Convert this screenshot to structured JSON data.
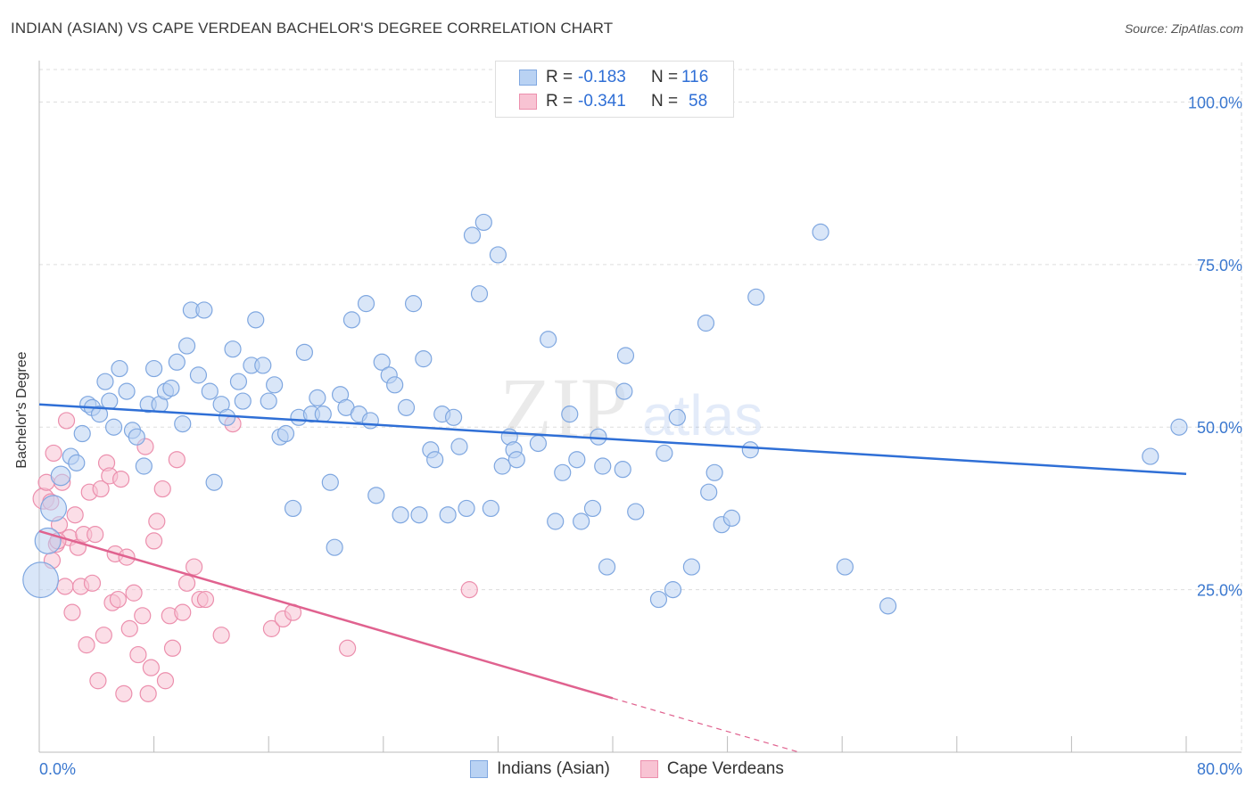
{
  "header": {
    "title": "INDIAN (ASIAN) VS CAPE VERDEAN BACHELOR'S DEGREE CORRELATION CHART",
    "source": "Source: ZipAtlas.com"
  },
  "watermark": {
    "zip": "ZIP",
    "atlas": "atlas"
  },
  "legend_top": {
    "rows": [
      {
        "r_label": "R =",
        "r_value": "-0.183",
        "n_label": "N =",
        "n_value": "116"
      },
      {
        "r_label": "R =",
        "r_value": "-0.341",
        "n_label": "N =",
        "n_value": "58"
      }
    ]
  },
  "legend_bottom": {
    "items": [
      {
        "label": "Indians (Asian)"
      },
      {
        "label": "Cape Verdeans"
      }
    ]
  },
  "colors": {
    "blue_fill": "#b9d2f3",
    "blue_stroke": "#7fa7e0",
    "blue_line": "#2f6fd6",
    "pink_fill": "#f8c3d3",
    "pink_stroke": "#ec8fad",
    "pink_line": "#e0628f",
    "axis_text": "#3b78cf",
    "grid": "#dddddd"
  },
  "chart_data": {
    "type": "scatter",
    "title": "INDIAN (ASIAN) VS CAPE VERDEAN BACHELOR'S DEGREE CORRELATION CHART",
    "xlabel": "",
    "ylabel": "Bachelor's Degree",
    "xlim": [
      0,
      80
    ],
    "ylim": [
      0,
      105
    ],
    "x_tick_labels": [
      "0.0%",
      "80.0%"
    ],
    "y_ticks": [
      25,
      50,
      75,
      100
    ],
    "y_tick_labels": [
      "25.0%",
      "50.0%",
      "75.0%",
      "100.0%"
    ],
    "series": [
      {
        "name": "Indians (Asian)",
        "r": -0.183,
        "n": 116,
        "trend": {
          "x0": 0,
          "y0": 53.5,
          "x1": 80,
          "y1": 42.8
        },
        "points": [
          [
            0.1,
            26.5,
            2.2
          ],
          [
            1.0,
            37.5,
            1.6
          ],
          [
            0.6,
            32.5,
            1.6
          ],
          [
            1.5,
            42.5,
            1.2
          ],
          [
            2.2,
            45.5,
            1
          ],
          [
            2.6,
            44.5,
            1
          ],
          [
            3.0,
            49.0,
            1
          ],
          [
            3.4,
            53.5,
            1
          ],
          [
            3.7,
            53.0,
            1
          ],
          [
            4.2,
            52.0,
            1
          ],
          [
            4.6,
            57.0,
            1
          ],
          [
            4.9,
            54.0,
            1
          ],
          [
            5.2,
            50.0,
            1
          ],
          [
            5.6,
            59.0,
            1
          ],
          [
            6.1,
            55.5,
            1
          ],
          [
            6.5,
            49.5,
            1
          ],
          [
            6.8,
            48.5,
            1
          ],
          [
            7.3,
            44.0,
            1
          ],
          [
            7.6,
            53.5,
            1
          ],
          [
            8.0,
            59.0,
            1
          ],
          [
            8.4,
            53.5,
            1
          ],
          [
            8.8,
            55.5,
            1
          ],
          [
            9.2,
            56.0,
            1
          ],
          [
            9.6,
            60.0,
            1
          ],
          [
            10.0,
            50.5,
            1
          ],
          [
            10.3,
            62.5,
            1
          ],
          [
            10.6,
            68.0,
            1
          ],
          [
            11.1,
            58.0,
            1
          ],
          [
            11.5,
            68.0,
            1
          ],
          [
            11.9,
            55.5,
            1
          ],
          [
            12.2,
            41.5,
            1
          ],
          [
            12.7,
            53.5,
            1
          ],
          [
            13.1,
            51.5,
            1
          ],
          [
            13.5,
            62.0,
            1
          ],
          [
            13.9,
            57.0,
            1
          ],
          [
            14.2,
            54.0,
            1
          ],
          [
            14.8,
            59.5,
            1
          ],
          [
            15.1,
            66.5,
            1
          ],
          [
            15.6,
            59.5,
            1
          ],
          [
            16.0,
            54.0,
            1
          ],
          [
            16.4,
            56.5,
            1
          ],
          [
            16.8,
            48.5,
            1
          ],
          [
            17.2,
            49.0,
            1
          ],
          [
            17.7,
            37.5,
            1
          ],
          [
            18.1,
            51.5,
            1
          ],
          [
            18.5,
            61.5,
            1
          ],
          [
            19.0,
            52.0,
            1
          ],
          [
            19.4,
            54.5,
            1
          ],
          [
            19.8,
            52.0,
            1
          ],
          [
            20.3,
            41.5,
            1
          ],
          [
            20.6,
            31.5,
            1
          ],
          [
            21.0,
            55.0,
            1
          ],
          [
            21.4,
            53.0,
            1
          ],
          [
            21.8,
            66.5,
            1
          ],
          [
            22.3,
            52.0,
            1
          ],
          [
            22.8,
            69.0,
            1
          ],
          [
            23.1,
            51.0,
            1
          ],
          [
            23.5,
            39.5,
            1
          ],
          [
            23.9,
            60.0,
            1
          ],
          [
            24.4,
            58.0,
            1
          ],
          [
            24.8,
            56.5,
            1
          ],
          [
            25.2,
            36.5,
            1
          ],
          [
            25.6,
            53.0,
            1
          ],
          [
            26.1,
            69.0,
            1
          ],
          [
            26.5,
            36.5,
            1
          ],
          [
            26.8,
            60.5,
            1
          ],
          [
            27.3,
            46.5,
            1
          ],
          [
            27.6,
            45.0,
            1
          ],
          [
            28.1,
            52.0,
            1
          ],
          [
            28.5,
            36.5,
            1
          ],
          [
            28.9,
            51.5,
            1
          ],
          [
            29.3,
            47.0,
            1
          ],
          [
            29.8,
            37.5,
            1
          ],
          [
            30.2,
            79.5,
            1
          ],
          [
            30.7,
            70.5,
            1
          ],
          [
            31.0,
            81.5,
            1
          ],
          [
            31.5,
            37.5,
            1
          ],
          [
            32.0,
            76.5,
            1
          ],
          [
            32.3,
            44.0,
            1
          ],
          [
            32.8,
            48.5,
            1
          ],
          [
            33.1,
            46.5,
            1
          ],
          [
            33.3,
            45.0,
            1
          ],
          [
            34.8,
            47.5,
            1
          ],
          [
            35.5,
            63.5,
            1
          ],
          [
            36.0,
            35.5,
            1
          ],
          [
            36.5,
            43.0,
            1
          ],
          [
            37.0,
            52.0,
            1
          ],
          [
            37.5,
            45.0,
            1
          ],
          [
            37.8,
            35.5,
            1
          ],
          [
            38.6,
            37.5,
            1
          ],
          [
            39.0,
            48.5,
            1
          ],
          [
            39.3,
            44.0,
            1
          ],
          [
            39.6,
            28.5,
            1
          ],
          [
            40.7,
            43.5,
            1
          ],
          [
            40.9,
            61.0,
            1
          ],
          [
            40.8,
            55.5,
            1
          ],
          [
            41.6,
            37.0,
            1
          ],
          [
            43.2,
            23.5,
            1
          ],
          [
            43.6,
            46.0,
            1
          ],
          [
            44.2,
            25.0,
            1
          ],
          [
            44.5,
            51.5,
            1
          ],
          [
            45.5,
            28.5,
            1
          ],
          [
            46.5,
            66.0,
            1
          ],
          [
            46.7,
            40.0,
            1
          ],
          [
            47.1,
            43.0,
            1
          ],
          [
            47.6,
            35.0,
            1
          ],
          [
            48.3,
            36.0,
            1
          ],
          [
            49.6,
            46.5,
            1
          ],
          [
            50.0,
            70.0,
            1
          ],
          [
            54.5,
            80.0,
            1
          ],
          [
            56.2,
            28.5,
            1
          ],
          [
            59.2,
            22.5,
            1
          ],
          [
            77.5,
            45.5,
            1
          ],
          [
            79.5,
            50.0,
            1
          ]
        ]
      },
      {
        "name": "Cape Verdeans",
        "r": -0.341,
        "n": 58,
        "trend": {
          "x0": 0,
          "y0": 34.0,
          "x1": 40,
          "y1": 8.3
        },
        "trend_dashed": {
          "x0": 40,
          "y0": 8.3,
          "x1": 53,
          "y1": 0
        },
        "points": [
          [
            0.3,
            39.0,
            1.3
          ],
          [
            0.5,
            41.5,
            1
          ],
          [
            0.8,
            38.5,
            1
          ],
          [
            1.0,
            46.0,
            1
          ],
          [
            1.2,
            32.0,
            1
          ],
          [
            1.4,
            35.0,
            1
          ],
          [
            1.6,
            41.5,
            1
          ],
          [
            1.8,
            25.5,
            1
          ],
          [
            1.9,
            51.0,
            1
          ],
          [
            2.1,
            33.0,
            1
          ],
          [
            2.3,
            21.5,
            1
          ],
          [
            2.5,
            36.5,
            1
          ],
          [
            2.7,
            31.5,
            1
          ],
          [
            2.9,
            25.5,
            1
          ],
          [
            3.1,
            33.5,
            1
          ],
          [
            3.3,
            16.5,
            1
          ],
          [
            3.5,
            40.0,
            1
          ],
          [
            3.7,
            26.0,
            1
          ],
          [
            3.9,
            33.5,
            1
          ],
          [
            4.1,
            11.0,
            1
          ],
          [
            4.3,
            40.5,
            1
          ],
          [
            4.5,
            18.0,
            1
          ],
          [
            4.7,
            44.5,
            1
          ],
          [
            4.9,
            42.5,
            1
          ],
          [
            5.1,
            23.0,
            1
          ],
          [
            5.3,
            30.5,
            1
          ],
          [
            5.5,
            23.5,
            1
          ],
          [
            5.7,
            42.0,
            1
          ],
          [
            5.9,
            9.0,
            1
          ],
          [
            6.1,
            30.0,
            1
          ],
          [
            6.3,
            19.0,
            1
          ],
          [
            6.6,
            24.5,
            1
          ],
          [
            6.9,
            15.0,
            1
          ],
          [
            7.2,
            21.0,
            1
          ],
          [
            7.4,
            47.0,
            1
          ],
          [
            7.6,
            9.0,
            1
          ],
          [
            7.8,
            13.0,
            1
          ],
          [
            8.0,
            32.5,
            1
          ],
          [
            8.2,
            35.5,
            1
          ],
          [
            8.6,
            40.5,
            1
          ],
          [
            8.8,
            11.0,
            1
          ],
          [
            9.1,
            21.0,
            1
          ],
          [
            9.3,
            16.0,
            1
          ],
          [
            9.6,
            45.0,
            1
          ],
          [
            10.0,
            21.5,
            1
          ],
          [
            10.3,
            26.0,
            1
          ],
          [
            10.8,
            28.5,
            1
          ],
          [
            11.2,
            23.5,
            1
          ],
          [
            11.6,
            23.5,
            1
          ],
          [
            12.7,
            18.0,
            1
          ],
          [
            13.5,
            50.5,
            1
          ],
          [
            16.2,
            19.0,
            1
          ],
          [
            17.0,
            20.5,
            1
          ],
          [
            17.7,
            21.5,
            1
          ],
          [
            21.5,
            16.0,
            1
          ],
          [
            30.0,
            25.0,
            1
          ],
          [
            0.9,
            29.5,
            1
          ],
          [
            1.3,
            32.5,
            1
          ]
        ]
      }
    ]
  }
}
